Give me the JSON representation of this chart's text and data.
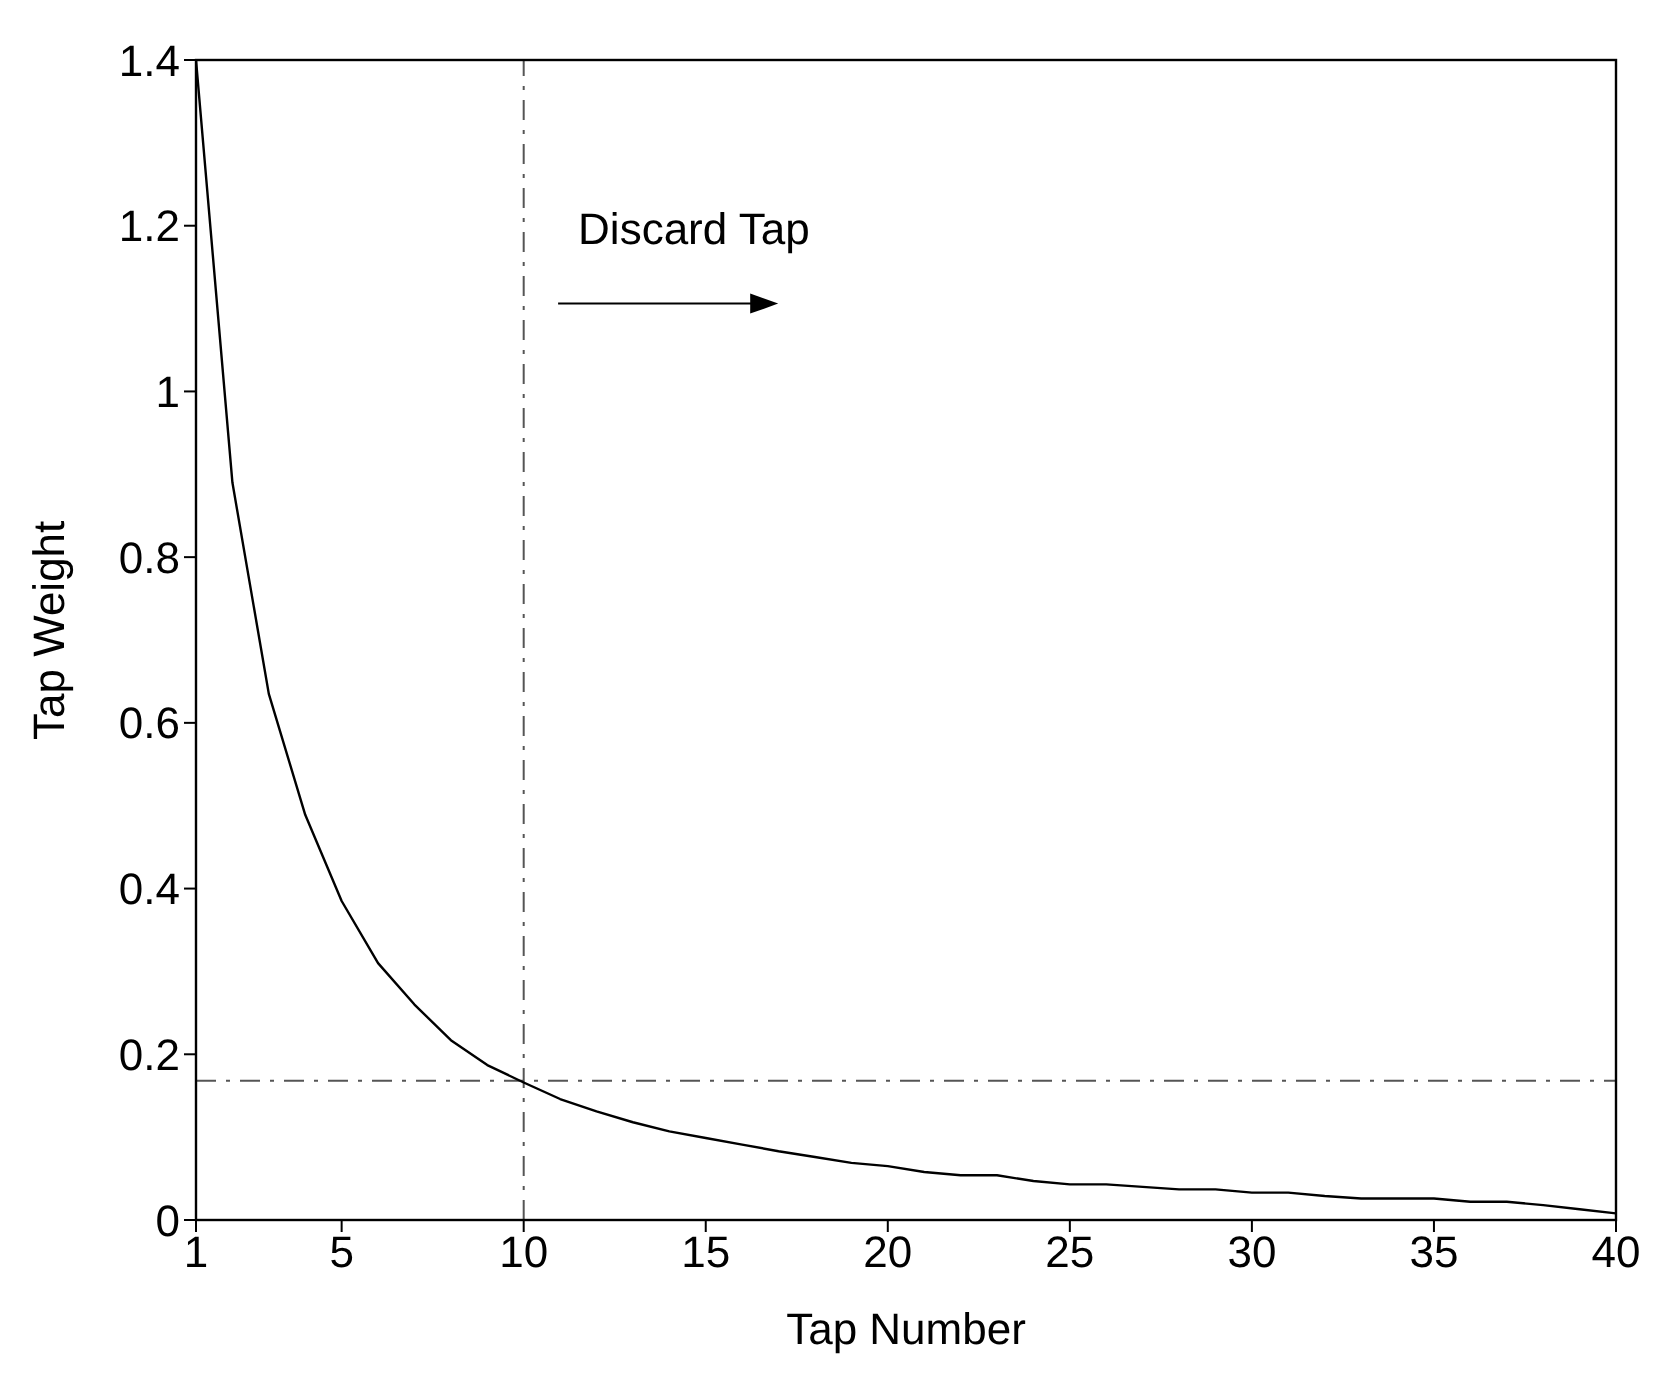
{
  "chart_data": {
    "type": "line",
    "xlabel": "Tap Number",
    "ylabel": "Tap Weight",
    "x": [
      1,
      2,
      3,
      4,
      5,
      6,
      7,
      8,
      9,
      10,
      11,
      12,
      13,
      14,
      15,
      16,
      17,
      18,
      19,
      20,
      21,
      22,
      23,
      24,
      25,
      26,
      27,
      28,
      29,
      30,
      31,
      32,
      33,
      34,
      35,
      36,
      37,
      38,
      39,
      40
    ],
    "series": [
      {
        "color": "#000000",
        "values": [
          1.4,
          0.89,
          0.635,
          0.489,
          0.385,
          0.31,
          0.26,
          0.217,
          0.187,
          0.166,
          0.146,
          0.131,
          0.118,
          0.107,
          0.099,
          0.091,
          0.083,
          0.076,
          0.069,
          0.065,
          0.058,
          0.054,
          0.054,
          0.047,
          0.043,
          0.043,
          0.04,
          0.037,
          0.037,
          0.033,
          0.033,
          0.029,
          0.026,
          0.026,
          0.026,
          0.022,
          0.022,
          0.018,
          0.013,
          0.008
        ]
      }
    ],
    "xlim": [
      1,
      40
    ],
    "xticks": [
      1,
      5,
      10,
      15,
      20,
      25,
      30,
      35,
      40
    ],
    "ylim": [
      0,
      1.4
    ],
    "yticks": [
      0,
      0.2,
      0.4,
      0.6,
      0.8,
      1,
      1.2,
      1.4
    ],
    "ref_lines": [
      {
        "axis": "x",
        "value": 10,
        "color": "#555555",
        "line_style": "dashed"
      },
      {
        "axis": "y",
        "value": 0.168,
        "color": "#555555",
        "line_style": "dashed"
      }
    ],
    "annotations": [
      "Discard Tap"
    ],
    "marker": "none",
    "line_style": "solid"
  }
}
